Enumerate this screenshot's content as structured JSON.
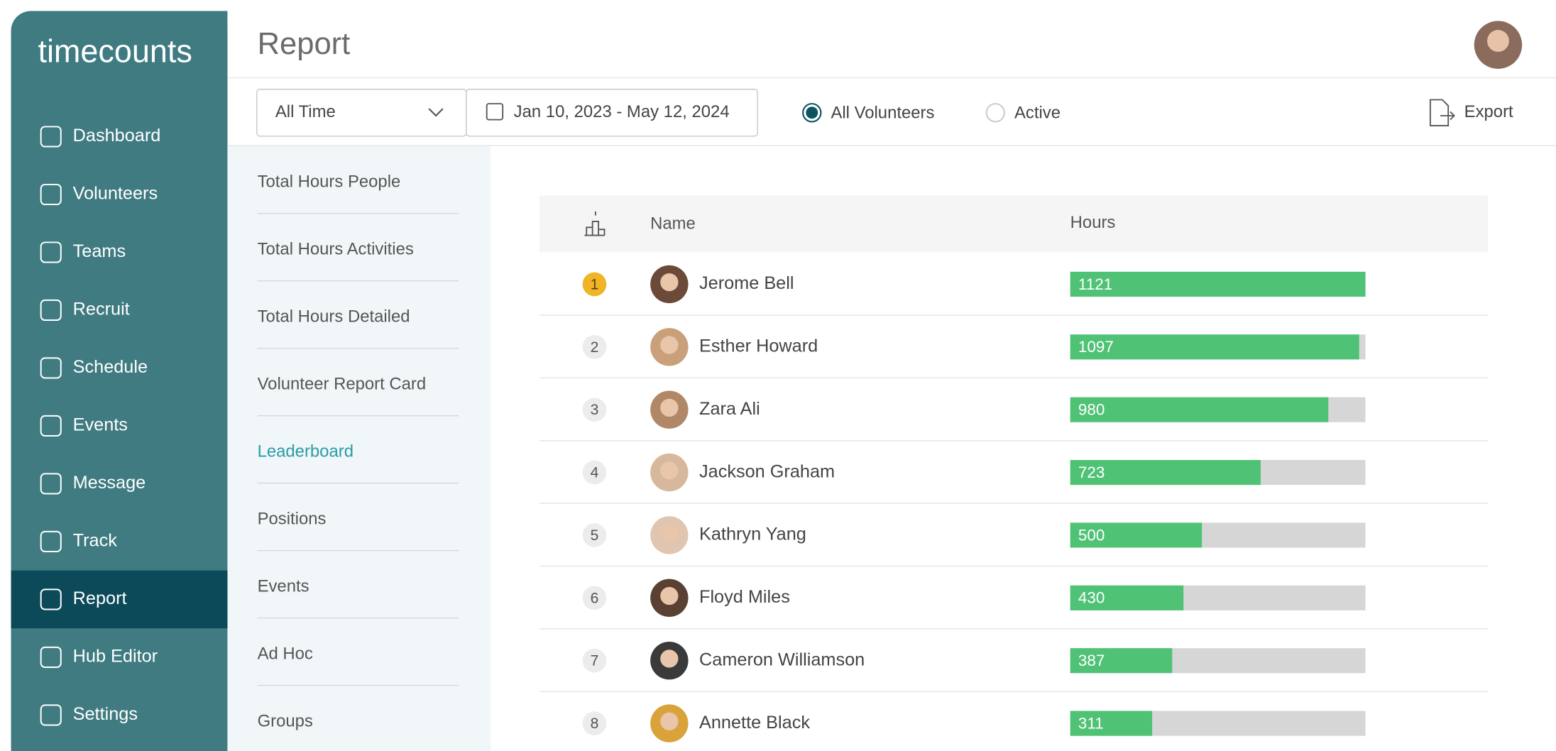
{
  "sidebar": {
    "logo": "timecounts",
    "nav": [
      "Dashboard",
      "Volunteers",
      "Teams",
      "Recruit",
      "Schedule",
      "Events",
      "Message",
      "Track",
      "Report",
      "Hub Editor",
      "Settings"
    ],
    "active": 8
  },
  "header": {
    "title": "Report"
  },
  "filters": {
    "period": "All Time",
    "date_range": "Jan 10, 2023 - May 12, 2024",
    "options": [
      "All Volunteers",
      "Active"
    ],
    "selected": 0,
    "export": "Export"
  },
  "report_menu": {
    "items": [
      "Total Hours People",
      "Total Hours Activities",
      "Total Hours Detailed",
      "Volunteer Report Card",
      "Leaderboard",
      "Positions",
      "Events",
      "Ad Hoc",
      "Groups"
    ],
    "active": 4
  },
  "leaderboard": {
    "columns": [
      "Name",
      "Hours"
    ],
    "rows": [
      {
        "rank": "1",
        "name": "Jerome Bell",
        "hours": 1121
      },
      {
        "rank": "2",
        "name": "Esther Howard",
        "hours": 1097
      },
      {
        "rank": "3",
        "name": "Zara Ali",
        "hours": 980
      },
      {
        "rank": "4",
        "name": "Jackson Graham",
        "hours": 723
      },
      {
        "rank": "5",
        "name": "Kathryn Yang",
        "hours": 500
      },
      {
        "rank": "6",
        "name": "Floyd Miles",
        "hours": 430
      },
      {
        "rank": "7",
        "name": "Cameron Williamson",
        "hours": 387
      },
      {
        "rank": "8",
        "name": "Annette Black",
        "hours": 311
      }
    ]
  }
}
